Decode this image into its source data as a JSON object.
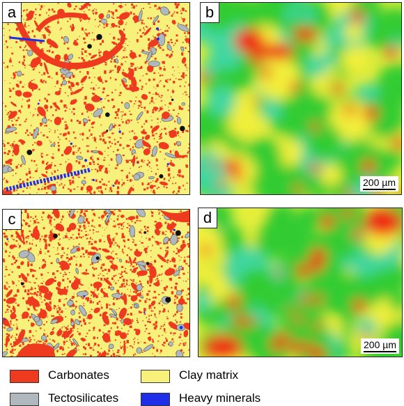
{
  "panels": [
    {
      "label": "a",
      "type": "phase-map"
    },
    {
      "label": "b",
      "type": "heat-map",
      "scale_bar": "200 µm"
    },
    {
      "label": "c",
      "type": "phase-map"
    },
    {
      "label": "d",
      "type": "heat-map",
      "scale_bar": "200 µm"
    }
  ],
  "legend": [
    {
      "label": "Carbonates",
      "color": "#ee3a1f"
    },
    {
      "label": "Clay matrix",
      "color": "#f7f07a"
    },
    {
      "label": "Tectosilicates",
      "color": "#aeb8bd"
    },
    {
      "label": "Heavy minerals",
      "color": "#1f2fe8"
    }
  ],
  "colors": {
    "heat_low": "#33cc33",
    "heat_mid": "#f2ef3a",
    "heat_high": "#ee2a12",
    "heat_cyan": "#3fd7a0"
  }
}
